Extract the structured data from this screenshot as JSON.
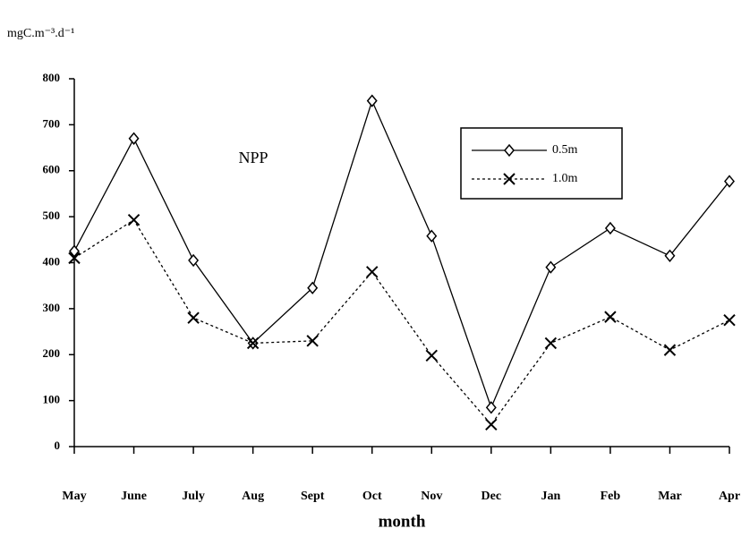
{
  "chart_data": {
    "type": "line",
    "y_unit": "mgC.m⁻³.d⁻¹",
    "annotation": "NPP",
    "x_label": "month",
    "categories": [
      "May",
      "June",
      "July",
      "Aug",
      "Sept",
      "Oct",
      "Nov",
      "Dec",
      "Jan",
      "Feb",
      "Mar",
      "Apr"
    ],
    "series": [
      {
        "name": "0.5m",
        "color": "#000000",
        "marker": "diamond",
        "dash": "solid",
        "values": [
          425,
          670,
          405,
          225,
          345,
          752,
          458,
          85,
          390,
          475,
          415,
          577
        ]
      },
      {
        "name": "1.0m",
        "color": "#000000",
        "marker": "x",
        "dash": "dotted",
        "values": [
          410,
          493,
          280,
          225,
          230,
          380,
          198,
          48,
          225,
          282,
          210,
          275
        ]
      }
    ],
    "ylim": [
      0,
      800
    ],
    "yticks": [
      0,
      100,
      200,
      300,
      400,
      500,
      600,
      700,
      800
    ],
    "grid": false,
    "legend": "upper right"
  }
}
